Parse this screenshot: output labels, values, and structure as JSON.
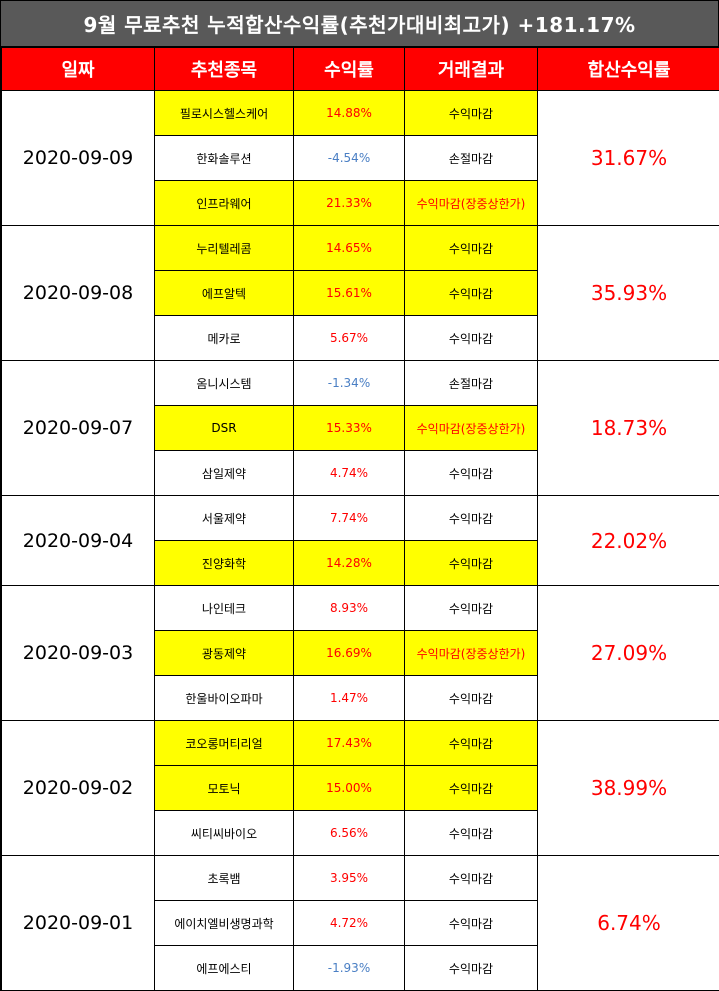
{
  "title": "9월 무료추천 누적합산수익률(추천가대비최고가) +181.17%",
  "headers": [
    "일짜",
    "추천종목",
    "수익률",
    "거래결과",
    "합산수익률"
  ],
  "colors": {
    "header_bg": "#ff0000",
    "title_bg": "#595959",
    "highlight": "#ffff00",
    "positive": "#ff0000",
    "negative": "#4a7fc4"
  },
  "groups": [
    {
      "date": "2020-09-09",
      "total": "31.67%",
      "rows": [
        {
          "stock": "필로시스헬스케어",
          "ret": "14.88%",
          "result": "수익마감",
          "hl": true,
          "neg": false,
          "limit": false
        },
        {
          "stock": "한화솔루션",
          "ret": "-4.54%",
          "result": "손절마감",
          "hl": false,
          "neg": true,
          "limit": false
        },
        {
          "stock": "인프라웨어",
          "ret": "21.33%",
          "result": "수익마감(장중상한가)",
          "hl": true,
          "neg": false,
          "limit": true
        }
      ]
    },
    {
      "date": "2020-09-08",
      "total": "35.93%",
      "rows": [
        {
          "stock": "누리텔레콤",
          "ret": "14.65%",
          "result": "수익마감",
          "hl": true,
          "neg": false,
          "limit": false
        },
        {
          "stock": "에프알텍",
          "ret": "15.61%",
          "result": "수익마감",
          "hl": true,
          "neg": false,
          "limit": false
        },
        {
          "stock": "메카로",
          "ret": "5.67%",
          "result": "수익마감",
          "hl": false,
          "neg": false,
          "limit": false
        }
      ]
    },
    {
      "date": "2020-09-07",
      "total": "18.73%",
      "rows": [
        {
          "stock": "옴니시스템",
          "ret": "-1.34%",
          "result": "손절마감",
          "hl": false,
          "neg": true,
          "limit": false
        },
        {
          "stock": "DSR",
          "ret": "15.33%",
          "result": "수익마감(장중상한가)",
          "hl": true,
          "neg": false,
          "limit": true
        },
        {
          "stock": "삼일제약",
          "ret": "4.74%",
          "result": "수익마감",
          "hl": false,
          "neg": false,
          "limit": false
        }
      ]
    },
    {
      "date": "2020-09-04",
      "total": "22.02%",
      "rows": [
        {
          "stock": "서울제약",
          "ret": "7.74%",
          "result": "수익마감",
          "hl": false,
          "neg": false,
          "limit": false
        },
        {
          "stock": "진양화학",
          "ret": "14.28%",
          "result": "수익마감",
          "hl": true,
          "neg": false,
          "limit": false
        }
      ]
    },
    {
      "date": "2020-09-03",
      "total": "27.09%",
      "rows": [
        {
          "stock": "나인테크",
          "ret": "8.93%",
          "result": "수익마감",
          "hl": false,
          "neg": false,
          "limit": false
        },
        {
          "stock": "광동제약",
          "ret": "16.69%",
          "result": "수익마감(장중상한가)",
          "hl": true,
          "neg": false,
          "limit": true
        },
        {
          "stock": "한울바이오파마",
          "ret": "1.47%",
          "result": "수익마감",
          "hl": false,
          "neg": false,
          "limit": false
        }
      ]
    },
    {
      "date": "2020-09-02",
      "total": "38.99%",
      "rows": [
        {
          "stock": "코오롱머티리얼",
          "ret": "17.43%",
          "result": "수익마감",
          "hl": true,
          "neg": false,
          "limit": false
        },
        {
          "stock": "모토닉",
          "ret": "15.00%",
          "result": "수익마감",
          "hl": true,
          "neg": false,
          "limit": false
        },
        {
          "stock": "씨티씨바이오",
          "ret": "6.56%",
          "result": "수익마감",
          "hl": false,
          "neg": false,
          "limit": false
        }
      ]
    },
    {
      "date": "2020-09-01",
      "total": "6.74%",
      "rows": [
        {
          "stock": "초록뱀",
          "ret": "3.95%",
          "result": "수익마감",
          "hl": false,
          "neg": false,
          "limit": false
        },
        {
          "stock": "에이치엘비생명과학",
          "ret": "4.72%",
          "result": "수익마감",
          "hl": false,
          "neg": false,
          "limit": false
        },
        {
          "stock": "에프에스티",
          "ret": "-1.93%",
          "result": "수익마감",
          "hl": false,
          "neg": true,
          "limit": false
        }
      ]
    }
  ]
}
